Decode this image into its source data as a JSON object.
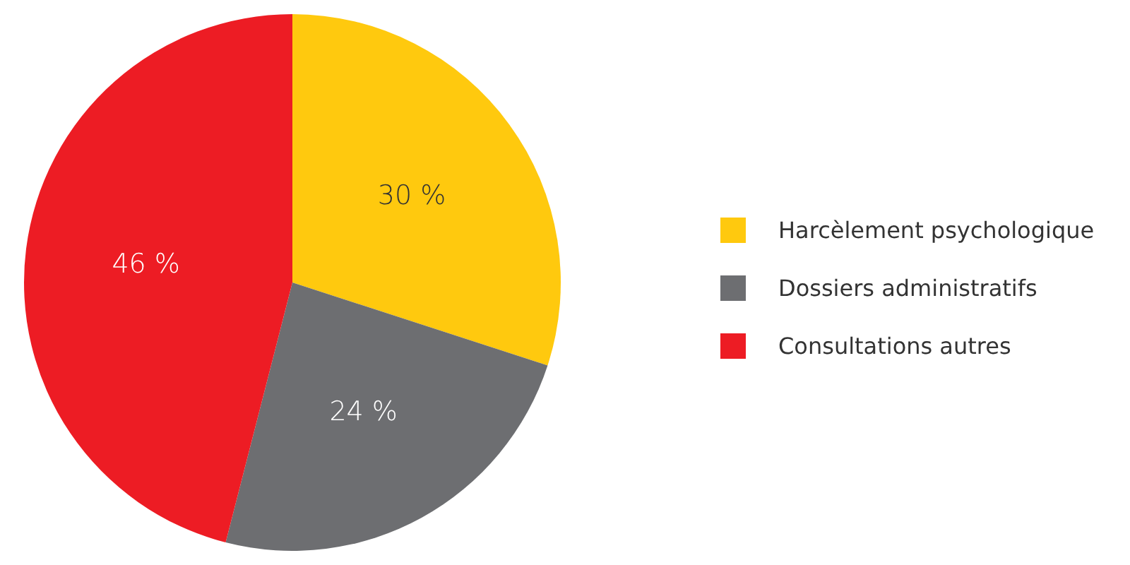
{
  "chart_data": {
    "type": "pie",
    "categories": [
      "Harcèlement psychologique",
      "Dossiers administratifs",
      "Consultations autres"
    ],
    "values": [
      30,
      24,
      46
    ],
    "colors": [
      "#ffc90e",
      "#6d6e71",
      "#ed1c24"
    ],
    "value_labels": [
      "30 %",
      "24 %",
      "46 %"
    ],
    "legend": "right"
  }
}
